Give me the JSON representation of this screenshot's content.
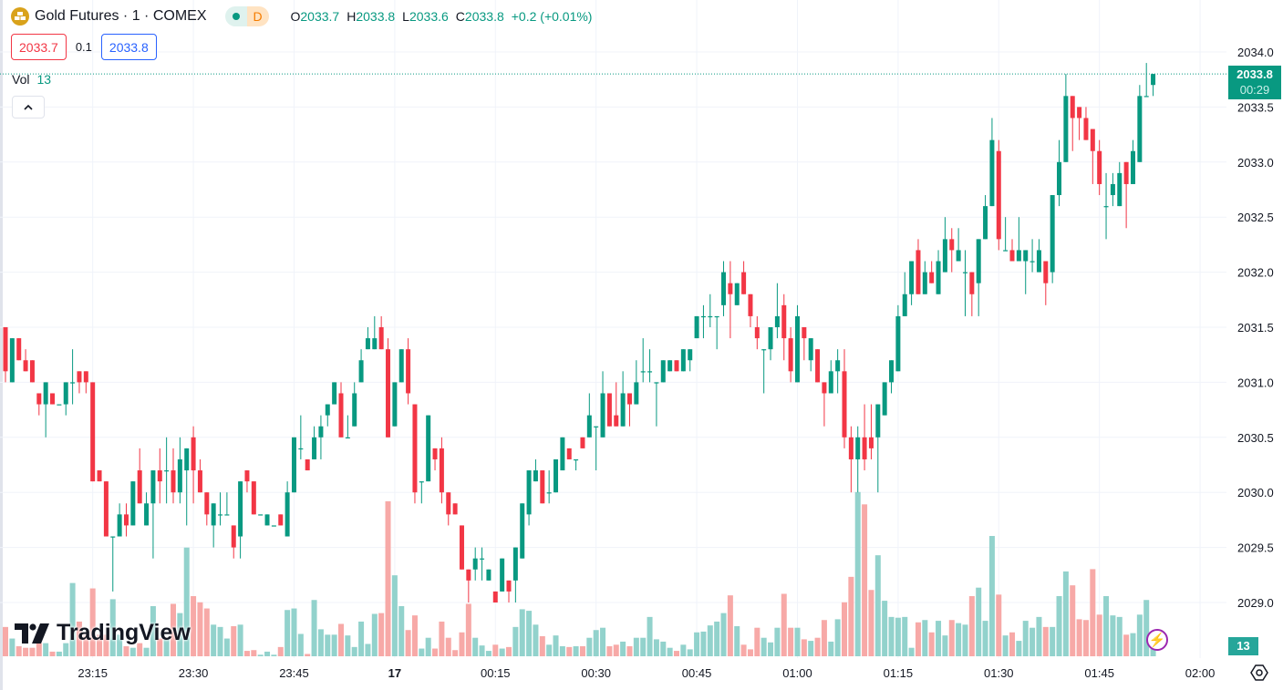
{
  "header": {
    "symbol_title": "Gold Futures · 1 · COMEX",
    "interval_badge": "D",
    "ohlc": {
      "o_label": "O",
      "o": "2033.7",
      "h_label": "H",
      "h": "2033.8",
      "l_label": "L",
      "l": "2033.6",
      "c_label": "C",
      "c": "2033.8",
      "change": "+0.2 (+0.01%)"
    },
    "sell_price": "2033.7",
    "spread": "0.1",
    "buy_price": "2033.8",
    "volume_label": "Vol",
    "volume_value": "13"
  },
  "price_axis": {
    "last_price": "2033.8",
    "countdown": "00:29",
    "volume_tag": "13"
  },
  "logo_text": "TradingView",
  "colors": {
    "up": "#089981",
    "down": "#f23645",
    "vol_up": "#92d2cc",
    "vol_down": "#f7a9a7",
    "grid": "#f0f3fa"
  },
  "chart_data": {
    "type": "candlestick",
    "title": "Gold Futures · 1 · COMEX",
    "ylim": [
      2028.66,
      2034.47
    ],
    "y_ticks": [
      "2034.0",
      "2033.5",
      "2033.0",
      "2032.5",
      "2032.0",
      "2031.5",
      "2031.0",
      "2030.5",
      "2030.0",
      "2029.5",
      "2029.0"
    ],
    "x_ticks": [
      {
        "label": "23:15",
        "index": 13
      },
      {
        "label": "23:30",
        "index": 28
      },
      {
        "label": "23:45",
        "index": 43
      },
      {
        "label": "17",
        "index": 58,
        "bold": true
      },
      {
        "label": "00:15",
        "index": 73
      },
      {
        "label": "00:30",
        "index": 88
      },
      {
        "label": "00:45",
        "index": 103
      },
      {
        "label": "01:00",
        "index": 118
      },
      {
        "label": "01:15",
        "index": 133
      },
      {
        "label": "01:30",
        "index": 148
      },
      {
        "label": "01:45",
        "index": 163
      },
      {
        "label": "02:00",
        "index": 178
      }
    ],
    "last_price": 2033.8,
    "ohlc": [
      [
        2031.5,
        2031.5,
        2031.0,
        2031.1
      ],
      [
        2031.0,
        2031.4,
        2031.0,
        2031.4
      ],
      [
        2031.4,
        2031.4,
        2031.2,
        2031.2
      ],
      [
        2031.2,
        2031.3,
        2031.1,
        2031.1
      ],
      [
        2031.2,
        2031.2,
        2031.0,
        2031.0
      ],
      [
        2030.9,
        2030.9,
        2030.7,
        2030.8
      ],
      [
        2030.8,
        2031.0,
        2030.5,
        2031.0
      ],
      [
        2030.9,
        2030.9,
        2030.8,
        2030.8
      ],
      [
        2030.8,
        2030.8,
        2030.8,
        2030.8
      ],
      [
        2030.8,
        2031.0,
        2030.7,
        2031.0
      ],
      [
        2031.0,
        2031.3,
        2030.8,
        2031.0
      ],
      [
        2031.1,
        2031.1,
        2030.9,
        2031.0
      ],
      [
        2031.1,
        2031.1,
        2030.9,
        2031.0
      ],
      [
        2031.0,
        2031.0,
        2030.1,
        2030.1
      ],
      [
        2030.2,
        2030.2,
        2030.1,
        2030.1
      ],
      [
        2030.1,
        2030.1,
        2029.6,
        2029.6
      ],
      [
        2029.6,
        2029.6,
        2029.1,
        2029.6
      ],
      [
        2029.6,
        2029.9,
        2029.6,
        2029.8
      ],
      [
        2029.8,
        2029.9,
        2029.6,
        2029.7
      ],
      [
        2029.7,
        2030.1,
        2029.7,
        2030.1
      ],
      [
        2030.2,
        2030.4,
        2029.9,
        2029.9
      ],
      [
        2029.7,
        2030.0,
        2029.7,
        2029.9
      ],
      [
        2029.9,
        2030.2,
        2029.4,
        2030.2
      ],
      [
        2030.2,
        2030.4,
        2029.9,
        2030.1
      ],
      [
        2030.2,
        2030.5,
        2029.9,
        2030.2
      ],
      [
        2030.2,
        2030.4,
        2029.9,
        2030.0
      ],
      [
        2030.0,
        2030.5,
        2029.9,
        2030.3
      ],
      [
        2030.2,
        2030.4,
        2029.7,
        2030.4
      ],
      [
        2030.5,
        2030.6,
        2029.9,
        2030.2
      ],
      [
        2030.2,
        2030.3,
        2030.0,
        2030.0
      ],
      [
        2030.0,
        2030.0,
        2029.7,
        2029.8
      ],
      [
        2029.7,
        2029.9,
        2029.5,
        2029.9
      ],
      [
        2029.8,
        2030.0,
        2029.7,
        2029.8
      ],
      [
        2029.8,
        2030.0,
        2029.8,
        2029.8
      ],
      [
        2029.7,
        2029.7,
        2029.4,
        2029.5
      ],
      [
        2029.6,
        2030.1,
        2029.4,
        2030.1
      ],
      [
        2030.2,
        2030.2,
        2030.0,
        2030.1
      ],
      [
        2030.1,
        2030.1,
        2029.8,
        2029.8
      ],
      [
        2029.8,
        2029.8,
        2029.8,
        2029.8
      ],
      [
        2029.7,
        2029.8,
        2029.7,
        2029.8
      ],
      [
        2029.7,
        2029.7,
        2029.7,
        2029.7
      ],
      [
        2029.8,
        2029.8,
        2029.7,
        2029.7
      ],
      [
        2029.6,
        2030.1,
        2029.6,
        2030.0
      ],
      [
        2030.0,
        2030.5,
        2030.0,
        2030.5
      ],
      [
        2030.4,
        2030.7,
        2030.3,
        2030.4
      ],
      [
        2030.3,
        2030.3,
        2030.2,
        2030.2
      ],
      [
        2030.3,
        2030.6,
        2030.3,
        2030.5
      ],
      [
        2030.5,
        2030.7,
        2030.3,
        2030.6
      ],
      [
        2030.7,
        2030.8,
        2030.6,
        2030.8
      ],
      [
        2030.8,
        2031.0,
        2030.8,
        2031.0
      ],
      [
        2030.9,
        2031.0,
        2030.5,
        2030.5
      ],
      [
        2030.5,
        2030.7,
        2030.5,
        2030.5
      ],
      [
        2030.6,
        2031.0,
        2030.6,
        2030.9
      ],
      [
        2031.0,
        2031.3,
        2031.0,
        2031.2
      ],
      [
        2031.3,
        2031.5,
        2031.3,
        2031.4
      ],
      [
        2031.3,
        2031.6,
        2031.3,
        2031.4
      ],
      [
        2031.5,
        2031.6,
        2031.3,
        2031.3
      ],
      [
        2031.3,
        2031.4,
        2030.5,
        2030.5
      ],
      [
        2030.6,
        2031.0,
        2030.6,
        2031.0
      ],
      [
        2031.0,
        2031.3,
        2031.0,
        2031.3
      ],
      [
        2031.3,
        2031.4,
        2030.8,
        2030.9
      ],
      [
        2030.8,
        2030.8,
        2029.9,
        2030.0
      ],
      [
        2030.1,
        2030.1,
        2029.9,
        2030.1
      ],
      [
        2030.1,
        2030.7,
        2030.1,
        2030.7
      ],
      [
        2030.4,
        2030.4,
        2030.2,
        2030.3
      ],
      [
        2030.4,
        2030.5,
        2029.9,
        2030.0
      ],
      [
        2030.0,
        2030.0,
        2029.7,
        2029.8
      ],
      [
        2029.9,
        2029.9,
        2029.8,
        2029.8
      ],
      [
        2029.7,
        2029.7,
        2029.3,
        2029.3
      ],
      [
        2029.3,
        2029.3,
        2029.0,
        2029.2
      ],
      [
        2029.3,
        2029.5,
        2029.2,
        2029.4
      ],
      [
        2029.4,
        2029.5,
        2029.2,
        2029.4
      ],
      [
        2029.2,
        2029.3,
        2029.2,
        2029.3
      ],
      [
        2029.1,
        2029.1,
        2029.0,
        2029.0
      ],
      [
        2029.1,
        2029.4,
        2029.1,
        2029.4
      ],
      [
        2029.2,
        2029.2,
        2029.0,
        2029.1
      ],
      [
        2029.2,
        2029.5,
        2029.0,
        2029.5
      ],
      [
        2029.4,
        2029.9,
        2029.4,
        2029.9
      ],
      [
        2029.8,
        2030.2,
        2029.7,
        2030.2
      ],
      [
        2030.1,
        2030.3,
        2030.1,
        2030.2
      ],
      [
        2030.2,
        2030.2,
        2029.9,
        2029.9
      ],
      [
        2030.0,
        2030.2,
        2029.9,
        2030.0
      ],
      [
        2030.0,
        2030.3,
        2030.0,
        2030.3
      ],
      [
        2030.2,
        2030.5,
        2030.2,
        2030.5
      ],
      [
        2030.4,
        2030.4,
        2030.3,
        2030.3
      ],
      [
        2030.3,
        2030.3,
        2030.2,
        2030.3
      ],
      [
        2030.5,
        2030.5,
        2030.4,
        2030.4
      ],
      [
        2030.5,
        2030.9,
        2030.5,
        2030.7
      ],
      [
        2030.6,
        2030.6,
        2030.2,
        2030.6
      ],
      [
        2030.5,
        2031.1,
        2030.5,
        2030.9
      ],
      [
        2030.9,
        2030.9,
        2030.6,
        2030.6
      ],
      [
        2030.7,
        2031.0,
        2030.6,
        2030.6
      ],
      [
        2030.6,
        2031.1,
        2030.6,
        2030.9
      ],
      [
        2030.9,
        2030.9,
        2030.6,
        2030.8
      ],
      [
        2030.8,
        2031.2,
        2030.8,
        2031.0
      ],
      [
        2031.1,
        2031.4,
        2031.0,
        2031.1
      ],
      [
        2031.1,
        2031.3,
        2031.0,
        2031.1
      ],
      [
        2031.0,
        2031.0,
        2030.6,
        2031.0
      ],
      [
        2031.0,
        2031.2,
        2031.0,
        2031.2
      ],
      [
        2031.1,
        2031.2,
        2031.1,
        2031.2
      ],
      [
        2031.2,
        2031.2,
        2031.1,
        2031.1
      ],
      [
        2031.1,
        2031.3,
        2031.1,
        2031.3
      ],
      [
        2031.2,
        2031.3,
        2031.1,
        2031.3
      ],
      [
        2031.4,
        2031.6,
        2031.4,
        2031.6
      ],
      [
        2031.6,
        2031.7,
        2031.4,
        2031.6
      ],
      [
        2031.6,
        2031.8,
        2031.5,
        2031.6
      ],
      [
        2031.6,
        2031.6,
        2031.3,
        2031.6
      ],
      [
        2031.7,
        2032.1,
        2031.6,
        2032.0
      ],
      [
        2031.9,
        2032.1,
        2031.4,
        2031.8
      ],
      [
        2031.7,
        2031.9,
        2031.7,
        2031.9
      ],
      [
        2032.0,
        2032.1,
        2031.8,
        2031.8
      ],
      [
        2031.8,
        2031.8,
        2031.5,
        2031.6
      ],
      [
        2031.5,
        2031.6,
        2031.3,
        2031.4
      ],
      [
        2031.3,
        2031.3,
        2030.9,
        2031.3
      ],
      [
        2031.3,
        2031.5,
        2031.2,
        2031.5
      ],
      [
        2031.5,
        2031.9,
        2031.4,
        2031.6
      ],
      [
        2031.7,
        2031.8,
        2031.2,
        2031.4
      ],
      [
        2031.4,
        2031.5,
        2031.0,
        2031.1
      ],
      [
        2031.0,
        2031.7,
        2031.0,
        2031.6
      ],
      [
        2031.5,
        2031.5,
        2031.2,
        2031.4
      ],
      [
        2031.2,
        2031.4,
        2031.1,
        2031.4
      ],
      [
        2031.3,
        2031.3,
        2031.0,
        2031.0
      ],
      [
        2031.0,
        2031.0,
        2030.6,
        2030.9
      ],
      [
        2030.9,
        2031.2,
        2030.9,
        2031.1
      ],
      [
        2031.1,
        2031.3,
        2030.9,
        2031.2
      ],
      [
        2031.1,
        2031.3,
        2030.4,
        2030.5
      ],
      [
        2030.5,
        2030.6,
        2030.0,
        2030.3
      ],
      [
        2030.3,
        2030.6,
        2030.0,
        2030.5
      ],
      [
        2030.5,
        2030.8,
        2030.2,
        2030.3
      ],
      [
        2030.5,
        2030.8,
        2030.3,
        2030.4
      ],
      [
        2030.5,
        2030.8,
        2030.0,
        2030.8
      ],
      [
        2030.7,
        2031.0,
        2030.7,
        2031.0
      ],
      [
        2031.0,
        2031.2,
        2030.9,
        2031.2
      ],
      [
        2031.1,
        2031.7,
        2031.1,
        2031.6
      ],
      [
        2031.6,
        2032.0,
        2031.6,
        2031.8
      ],
      [
        2031.8,
        2032.1,
        2031.7,
        2032.1
      ],
      [
        2032.2,
        2032.3,
        2031.8,
        2031.8
      ],
      [
        2031.8,
        2032.1,
        2031.8,
        2032.0
      ],
      [
        2032.0,
        2032.1,
        2031.9,
        2031.9
      ],
      [
        2031.8,
        2032.2,
        2031.8,
        2032.1
      ],
      [
        2032.0,
        2032.5,
        2032.0,
        2032.3
      ],
      [
        2032.3,
        2032.4,
        2032.0,
        2032.2
      ],
      [
        2032.1,
        2032.4,
        2032.1,
        2032.2
      ],
      [
        2032.0,
        2032.2,
        2031.6,
        2032.0
      ],
      [
        2032.0,
        2032.0,
        2031.6,
        2031.8
      ],
      [
        2031.9,
        2032.3,
        2031.6,
        2032.3
      ],
      [
        2032.3,
        2032.7,
        2032.3,
        2032.6
      ],
      [
        2032.6,
        2033.4,
        2032.6,
        2033.2
      ],
      [
        2033.1,
        2033.2,
        2032.2,
        2032.3
      ],
      [
        2032.2,
        2032.5,
        2032.2,
        2032.2
      ],
      [
        2032.2,
        2032.3,
        2032.1,
        2032.1
      ],
      [
        2032.1,
        2032.5,
        2032.1,
        2032.2
      ],
      [
        2032.1,
        2032.2,
        2031.8,
        2032.2
      ],
      [
        2032.1,
        2032.3,
        2032.0,
        2032.1
      ],
      [
        2032.0,
        2032.3,
        2032.0,
        2032.2
      ],
      [
        2032.1,
        2032.1,
        2031.7,
        2031.9
      ],
      [
        2032.0,
        2032.7,
        2031.9,
        2032.7
      ],
      [
        2032.7,
        2033.2,
        2032.6,
        2033.0
      ],
      [
        2033.0,
        2033.8,
        2033.0,
        2033.6
      ],
      [
        2033.6,
        2033.6,
        2033.1,
        2033.4
      ],
      [
        2033.5,
        2033.5,
        2033.2,
        2033.4
      ],
      [
        2033.4,
        2033.5,
        2033.2,
        2033.2
      ],
      [
        2033.3,
        2033.3,
        2032.8,
        2033.1
      ],
      [
        2033.1,
        2033.2,
        2032.7,
        2032.8
      ],
      [
        2032.6,
        2032.9,
        2032.3,
        2032.6
      ],
      [
        2032.7,
        2032.9,
        2032.6,
        2032.8
      ],
      [
        2032.6,
        2033.0,
        2032.6,
        2032.9
      ],
      [
        2033.0,
        2033.0,
        2032.4,
        2032.8
      ],
      [
        2032.8,
        2033.2,
        2032.8,
        2033.1
      ],
      [
        2033.0,
        2033.7,
        2033.0,
        2033.6
      ],
      [
        2033.6,
        2033.9,
        2033.6,
        2033.6
      ],
      [
        2033.7,
        2033.8,
        2033.6,
        2033.8
      ]
    ],
    "volume": [
      38,
      23,
      13,
      11,
      11,
      17,
      17,
      6,
      6,
      17,
      95,
      45,
      28,
      88,
      28,
      28,
      74,
      28,
      13,
      11,
      17,
      11,
      65,
      23,
      23,
      68,
      56,
      141,
      78,
      70,
      62,
      41,
      38,
      23,
      39,
      41,
      7,
      8,
      2,
      6,
      2,
      12,
      60,
      62,
      29,
      3,
      73,
      35,
      28,
      28,
      42,
      27,
      12,
      45,
      16,
      55,
      56,
      201,
      105,
      65,
      34,
      53,
      10,
      24,
      10,
      45,
      24,
      8,
      31,
      68,
      24,
      14,
      7,
      15,
      10,
      12,
      38,
      61,
      59,
      41,
      26,
      15,
      27,
      13,
      12,
      13,
      13,
      24,
      34,
      37,
      13,
      15,
      19,
      13,
      24,
      24,
      51,
      22,
      19,
      11,
      7,
      15,
      9,
      31,
      32,
      40,
      45,
      56,
      79,
      39,
      15,
      9,
      37,
      24,
      18,
      37,
      81,
      37,
      37,
      22,
      20,
      24,
      47,
      19,
      48,
      70,
      103,
      213,
      197,
      86,
      131,
      72,
      51,
      50,
      51,
      11,
      44,
      47,
      31,
      46,
      27,
      47,
      43,
      41,
      78,
      89,
      46,
      156,
      80,
      27,
      31,
      20,
      46,
      37,
      51,
      38,
      38,
      78,
      110,
      92,
      48,
      47,
      113,
      54,
      78,
      53,
      51,
      28,
      30,
      54,
      73,
      13
    ]
  }
}
